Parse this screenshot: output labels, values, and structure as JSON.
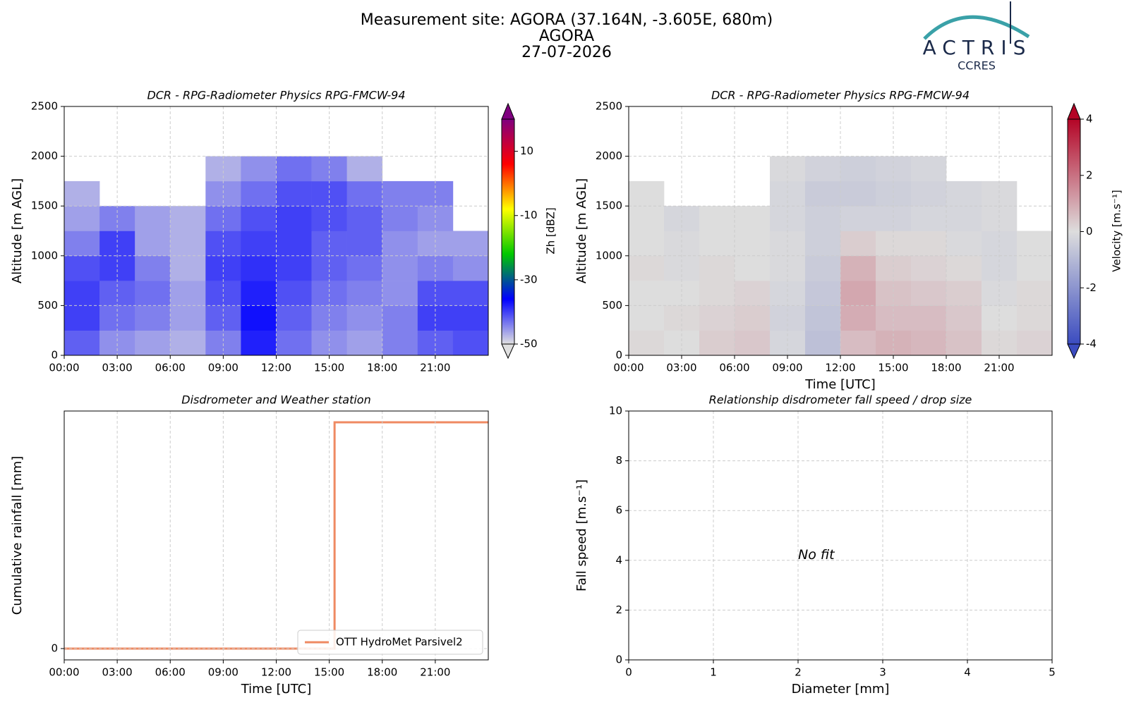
{
  "header": {
    "title": "Measurement site: AGORA (37.164N, -3.605E, 680m)",
    "site": "AGORA",
    "date": "27-07-2026"
  },
  "logo": {
    "name": "ACTRIS",
    "subtitle": "CCRES"
  },
  "chart_data": [
    {
      "type": "heatmap",
      "title": "DCR - RPG-Radiometer Physics RPG-FMCW-94",
      "ylabel": "Altitude [m AGL]",
      "colorbar_label": "Zh [dBZ]",
      "clim": [
        -50,
        20
      ],
      "cticks": [
        -50,
        -30,
        -10,
        10
      ],
      "colorbar_extend": "both",
      "colormap": [
        "#e0e0e0",
        "#0000ff",
        "#00c800",
        "#ffff00",
        "#ff0000",
        "#800080"
      ],
      "xlim": [
        0,
        24
      ],
      "ylim": [
        0,
        2500
      ],
      "grid": true,
      "xticks": [
        {
          "value": 0,
          "label": "00:00"
        },
        {
          "value": 3,
          "label": "03:00"
        },
        {
          "value": 6,
          "label": "06:00"
        },
        {
          "value": 9,
          "label": "09:00"
        },
        {
          "value": 12,
          "label": "12:00"
        },
        {
          "value": 15,
          "label": "15:00"
        },
        {
          "value": 18,
          "label": "18:00"
        },
        {
          "value": 21,
          "label": "21:00"
        }
      ],
      "yticks": [
        0,
        500,
        1000,
        1500,
        2000,
        2500
      ],
      "x": [
        1,
        3,
        5,
        7,
        9,
        11,
        13,
        15,
        17,
        19,
        21,
        23
      ],
      "y": [
        125,
        375,
        625,
        875,
        1125,
        1375,
        1625,
        1875
      ],
      "z": [
        [
          -42,
          -45,
          -46,
          -47,
          -44,
          -38,
          -43,
          -45,
          -46,
          -44,
          -42,
          -41
        ],
        [
          -40,
          -43,
          -44,
          -46,
          -42,
          -37,
          -42,
          -44,
          -45,
          -44,
          -40,
          -40
        ],
        [
          -40,
          -42,
          -43,
          -46,
          -41,
          -38,
          -41,
          -43,
          -44,
          -45,
          -41,
          -41
        ],
        [
          -41,
          -40,
          -44,
          -47,
          -40,
          -39,
          -40,
          -42,
          -43,
          -45,
          -44,
          -45
        ],
        [
          -44,
          -40,
          -46,
          -47,
          -41,
          -40,
          -40,
          -42,
          -42,
          -45,
          -46,
          -46
        ],
        [
          -46,
          -44,
          -46,
          -47,
          -43,
          -41,
          -40,
          -41,
          -42,
          -44,
          -45,
          null
        ],
        [
          -47,
          null,
          null,
          null,
          -45,
          -43,
          -41,
          -41,
          -43,
          -44,
          -44,
          null
        ],
        [
          null,
          null,
          null,
          null,
          -47,
          -45,
          -43,
          -44,
          -47,
          null,
          null,
          null
        ]
      ]
    },
    {
      "type": "heatmap",
      "title": "DCR - RPG-Radiometer Physics RPG-FMCW-94",
      "ylabel": "Altitude [m AGL]",
      "xlabel": "Time [UTC]",
      "colorbar_label": "Velocity [m.s⁻¹]",
      "clim": [
        -4,
        4
      ],
      "cticks": [
        -4,
        -2,
        0,
        2,
        4
      ],
      "colorbar_extend": "both",
      "colormap": [
        "#3b4cc0",
        "#dddddd",
        "#b40426"
      ],
      "xlim": [
        0,
        24
      ],
      "ylim": [
        0,
        2500
      ],
      "grid": true,
      "xticks": [
        {
          "value": 0,
          "label": "00:00"
        },
        {
          "value": 3,
          "label": "03:00"
        },
        {
          "value": 6,
          "label": "06:00"
        },
        {
          "value": 9,
          "label": "09:00"
        },
        {
          "value": 12,
          "label": "12:00"
        },
        {
          "value": 15,
          "label": "15:00"
        },
        {
          "value": 18,
          "label": "18:00"
        },
        {
          "value": 21,
          "label": "21:00"
        }
      ],
      "yticks": [
        0,
        500,
        1000,
        1500,
        2000,
        2500
      ],
      "x": [
        1,
        3,
        5,
        7,
        9,
        11,
        13,
        15,
        17,
        19,
        21,
        23
      ],
      "y": [
        125,
        375,
        625,
        875,
        1125,
        1375,
        1625,
        1875
      ],
      "z": [
        [
          0.1,
          0.0,
          0.3,
          0.4,
          -0.2,
          -0.8,
          0.6,
          0.8,
          0.7,
          0.5,
          0.1,
          0.2
        ],
        [
          0.0,
          0.1,
          0.2,
          0.3,
          -0.3,
          -0.7,
          0.9,
          0.6,
          0.6,
          0.4,
          0.0,
          0.1
        ],
        [
          0.0,
          0.0,
          0.1,
          0.2,
          -0.2,
          -0.6,
          1.0,
          0.5,
          0.4,
          0.3,
          -0.1,
          0.1
        ],
        [
          0.1,
          -0.1,
          0.1,
          0.0,
          -0.1,
          -0.5,
          0.8,
          0.3,
          0.2,
          0.1,
          -0.2,
          0.0
        ],
        [
          0.0,
          -0.1,
          0.0,
          0.0,
          -0.1,
          -0.4,
          0.3,
          0.1,
          0.1,
          -0.1,
          -0.2,
          0.0
        ],
        [
          0.0,
          -0.2,
          0.0,
          0.0,
          -0.2,
          -0.4,
          -0.3,
          -0.3,
          -0.2,
          -0.2,
          -0.1,
          null
        ],
        [
          0.0,
          null,
          null,
          null,
          -0.2,
          -0.5,
          -0.5,
          -0.4,
          -0.3,
          -0.2,
          -0.1,
          null
        ],
        [
          null,
          null,
          null,
          null,
          -0.1,
          -0.3,
          -0.4,
          -0.3,
          -0.2,
          null,
          null,
          null
        ]
      ]
    },
    {
      "type": "line",
      "title": "Disdrometer and Weather station",
      "xlabel": "Time [UTC]",
      "ylabel": "Cumulative rainfall [mm]",
      "xlim": [
        0,
        24
      ],
      "ylim": [
        -0.01,
        0.21
      ],
      "grid": true,
      "legend": "lower right",
      "xticks": [
        {
          "value": 0,
          "label": "00:00"
        },
        {
          "value": 3,
          "label": "03:00"
        },
        {
          "value": 6,
          "label": "06:00"
        },
        {
          "value": 9,
          "label": "09:00"
        },
        {
          "value": 12,
          "label": "12:00"
        },
        {
          "value": 15,
          "label": "15:00"
        },
        {
          "value": 18,
          "label": "18:00"
        },
        {
          "value": 21,
          "label": "21:00"
        }
      ],
      "yticks": [
        0
      ],
      "x": [
        0,
        15.3,
        15.3,
        24
      ],
      "series": [
        {
          "name": "OTT HydroMet Parsivel2",
          "color": "#ef8a62",
          "values": [
            0,
            0,
            0.2,
            0.2
          ]
        }
      ]
    },
    {
      "type": "scatter",
      "title": "Relationship disdrometer fall speed / drop size",
      "xlabel": "Diameter [mm]",
      "ylabel": "Fall speed [m.s⁻¹]",
      "annotation": "No fit",
      "xlim": [
        0,
        5
      ],
      "ylim": [
        0,
        10
      ],
      "grid": true,
      "xticks": [
        0,
        1,
        2,
        3,
        4,
        5
      ],
      "yticks": [
        0,
        2,
        4,
        6,
        8,
        10
      ]
    }
  ]
}
